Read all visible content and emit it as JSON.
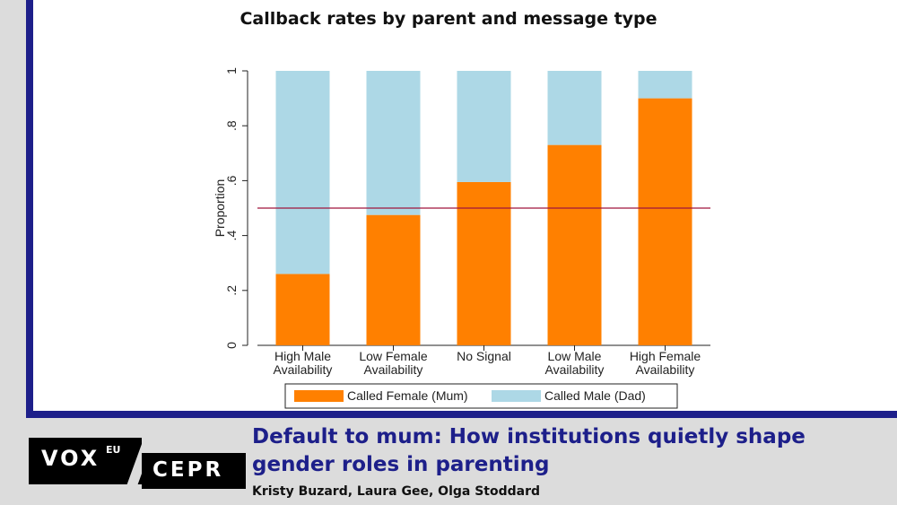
{
  "chart_data": {
    "type": "bar",
    "stacked": true,
    "title": "Callback rates by parent and message type",
    "ylabel": "Proportion",
    "xlabel": "",
    "ylim": [
      0,
      1
    ],
    "yticks": [
      "0",
      ".2",
      ".4",
      ".6",
      ".8",
      "1"
    ],
    "categories": [
      [
        "High Male",
        "Availability"
      ],
      [
        "Low Female",
        "Availability"
      ],
      [
        "No Signal"
      ],
      [
        "Low Male",
        "Availability"
      ],
      [
        "High Female",
        "Availability"
      ]
    ],
    "series": [
      {
        "name": "Called Female (Mum)",
        "color": "#ff8000",
        "values": [
          0.26,
          0.475,
          0.595,
          0.73,
          0.9
        ]
      },
      {
        "name": "Called Male (Dad)",
        "color": "#add8e6",
        "values": [
          0.74,
          0.525,
          0.405,
          0.27,
          0.1
        ]
      }
    ],
    "reference_line": {
      "y": 0.5,
      "color": "#a0143c"
    },
    "legend_position": "bottom",
    "grid": false
  },
  "footer": {
    "logo_vox": "VOX",
    "logo_eu": "EU",
    "logo_cepr": "CEPR",
    "article_title": "Default to mum: How institutions quietly shape gender roles in parenting",
    "authors": "Kristy Buzard, Laura Gee, Olga Stoddard"
  }
}
